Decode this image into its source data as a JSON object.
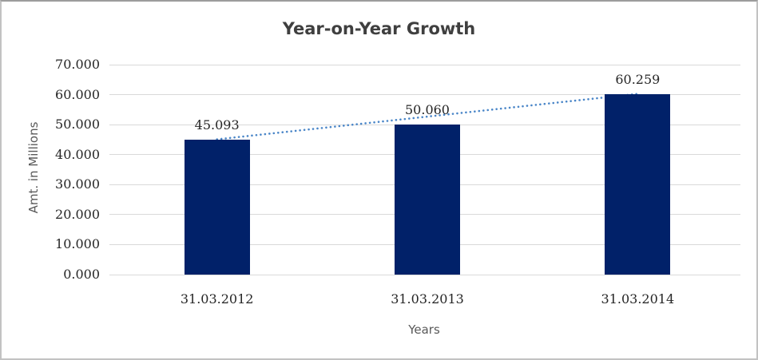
{
  "page": {
    "background": "#ffffff",
    "border_color": "#c2c2c2"
  },
  "chart_data": {
    "type": "bar",
    "title": "Year-on-Year Growth",
    "xlabel": "Years",
    "ylabel": "Amt. in Millions",
    "categories": [
      "31.03.2012",
      "31.03.2013",
      "31.03.2014"
    ],
    "values": [
      45.093,
      50.06,
      60.259
    ],
    "data_labels": [
      "45.093",
      "50.060",
      "60.259"
    ],
    "ylim": [
      0,
      70
    ],
    "ytick_step": 10,
    "ytick_labels": [
      "0.000",
      "10.000",
      "20.000",
      "30.000",
      "40.000",
      "50.000",
      "60.000",
      "70.000"
    ],
    "grid": true,
    "legend": "none",
    "bar_color": "#012169",
    "gridline_color": "#d9d9d9",
    "trendline": {
      "style": "dotted",
      "color": "#4a86c8",
      "from_value": 45.093,
      "to_value": 60.259
    },
    "title_color": "#3f3f3f",
    "label_color": "#262626",
    "axis_title_color": "#595959"
  }
}
